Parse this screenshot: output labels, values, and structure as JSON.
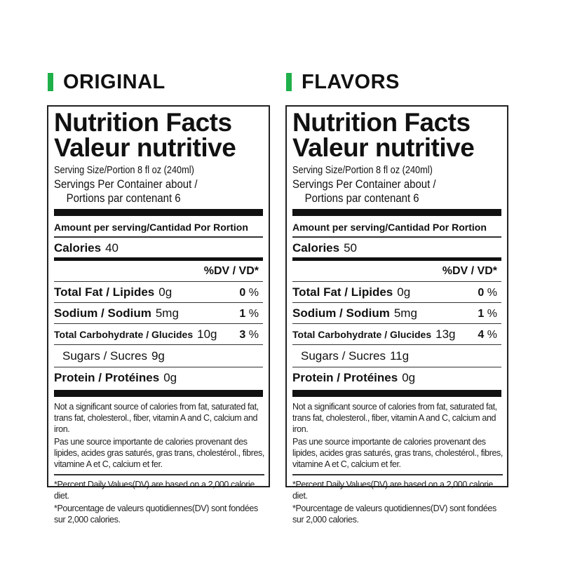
{
  "colors": {
    "accent": "#1fb04a"
  },
  "panels": [
    {
      "heading": "ORIGINAL",
      "title_en": "Nutrition Facts",
      "title_fr": "Valeur nutritive",
      "serving_size": "Serving Size/Portion  8 fl oz (240ml)",
      "servings_line1": "Servings Per Container about /",
      "servings_line2": "Portions par contenant 6",
      "amount_label": "Amount per serving/Cantidad Por Rortion",
      "calories_label": "Calories",
      "calories": "40",
      "dv_header": "%DV / VD*",
      "fat_label": "Total Fat / Lipides",
      "fat": "0g",
      "fat_dv": "0",
      "pct": "%",
      "sodium_label": "Sodium / Sodium",
      "sodium": "5mg",
      "sodium_dv": "1",
      "carb_label": "Total Carbohydrate / Glucides",
      "carb": "10g",
      "carb_dv": "3",
      "sugars_label": "Sugars / Sucres",
      "sugars": "9g",
      "protein_label": "Protein / Protéines",
      "protein": "0g",
      "note_en": "Not a significant source of calories from fat, saturated fat, trans fat, cholesterol., fiber, vitamin A and C, calcium and iron.",
      "note_fr": "Pas une source importante de calories provenant des lipides, acides gras saturés, gras trans, cholestérol., fibres, vitamine A et C, calcium et fer.",
      "foot_en": "*Percent Daily Values(DV) are based on a 2,000 calorie diet.",
      "foot_fr": "*Pourcentage de valeurs quotidiennes(DV) sont fondées sur 2,000 calories."
    },
    {
      "heading": "FLAVORS",
      "title_en": "Nutrition Facts",
      "title_fr": "Valeur nutritive",
      "serving_size": "Serving Size/Portion  8 fl oz (240ml)",
      "servings_line1": "Servings Per Container about /",
      "servings_line2": "Portions par contenant 6",
      "amount_label": "Amount per serving/Cantidad Por Rortion",
      "calories_label": "Calories",
      "calories": "50",
      "dv_header": "%DV / VD*",
      "fat_label": "Total Fat / Lipides",
      "fat": "0g",
      "fat_dv": "0",
      "pct": "%",
      "sodium_label": "Sodium / Sodium",
      "sodium": "5mg",
      "sodium_dv": "1",
      "carb_label": "Total Carbohydrate / Glucides",
      "carb": "13g",
      "carb_dv": "4",
      "sugars_label": "Sugars / Sucres",
      "sugars": "11g",
      "protein_label": "Protein / Protéines",
      "protein": "0g",
      "note_en": "Not a significant source of calories from fat, saturated fat, trans fat, cholesterol., fiber, vitamin A and C, calcium and iron.",
      "note_fr": "Pas une source importante de calories provenant des lipides, acides gras saturés, gras trans, cholestérol., fibres, vitamine A et C, calcium et fer.",
      "foot_en": "*Percent Daily Values(DV) are based on a 2,000 calorie diet.",
      "foot_fr": "*Pourcentage de valeurs quotidiennes(DV) sont fondées sur 2,000 calories."
    }
  ]
}
